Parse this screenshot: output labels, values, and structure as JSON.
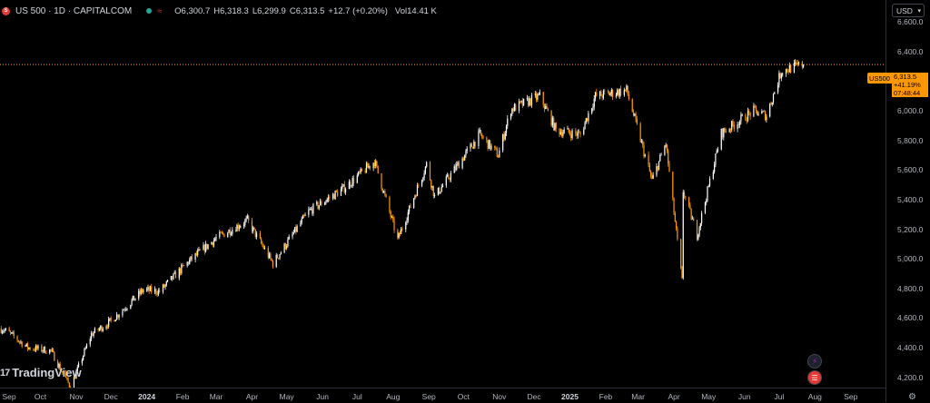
{
  "legend": {
    "symbol": "US 500 · 1D · CAPITALCOM",
    "open_label": "O",
    "open": "6,300.7",
    "high_label": "H",
    "high": "6,318.3",
    "low_label": "L",
    "low": "6,299.9",
    "close_label": "C",
    "close": "6,313.5",
    "change": "+12.7 (+0.20%)",
    "vol_label": "Vol",
    "vol": "14.41 K"
  },
  "currency": "USD",
  "logo_text": "TradingView",
  "last_price": {
    "symbol_tag": "US500",
    "price": "6,313.5",
    "change_pct": "+41.19%",
    "countdown": "07:48:44"
  },
  "colors": {
    "up": "#ffffff",
    "down": "#ff9800",
    "background": "#000000",
    "last_price_line": "#ff9800"
  },
  "icons": {
    "market_status": "market-open-dot",
    "flash": "lightning-icon",
    "flag": "us-flag-icon",
    "settings": "settings-icon"
  },
  "chart_data": {
    "type": "candlestick",
    "title": "US 500 · 1D · CAPITALCOM",
    "xlabel": "",
    "ylabel": "",
    "ylim": [
      4130,
      6750
    ],
    "yticks": [
      4200,
      4400,
      4600,
      4800,
      5000,
      5200,
      5400,
      5600,
      5800,
      6000,
      6200,
      6400,
      6600
    ],
    "ytick_labels": [
      "4,200.0",
      "4,400.0",
      "4,600.0",
      "4,800.0",
      "5,000.0",
      "5,200.0",
      "5,400.0",
      "5,600.0",
      "5,800.0",
      "6,000.0",
      "6,200.0",
      "6,400.0",
      "6,600.0"
    ],
    "xtick_labels": [
      "Sep",
      "Oct",
      "Nov",
      "Dec",
      "2024",
      "Feb",
      "Mar",
      "Apr",
      "May",
      "Jun",
      "Jul",
      "Aug",
      "Sep",
      "Oct",
      "Nov",
      "Dec",
      "2025",
      "Feb",
      "Mar",
      "Apr",
      "May",
      "Jun",
      "Jul",
      "Aug",
      "Sep"
    ],
    "xtick_dates": [
      "2023-09-01",
      "2023-10-01",
      "2023-11-01",
      "2023-12-01",
      "2024-01-01",
      "2024-02-01",
      "2024-03-01",
      "2024-04-01",
      "2024-05-01",
      "2024-06-01",
      "2024-07-01",
      "2024-08-01",
      "2024-09-01",
      "2024-10-01",
      "2024-11-01",
      "2024-12-01",
      "2025-01-01",
      "2025-02-01",
      "2025-03-01",
      "2025-04-01",
      "2025-05-01",
      "2025-06-01",
      "2025-07-01",
      "2025-08-01",
      "2025-09-01"
    ],
    "bold_ticks": [
      "2024",
      "2025"
    ],
    "xlim": [
      "2023-08-27",
      "2025-10-01"
    ],
    "anchors": [
      {
        "date": "2023-08-27",
        "value": 4530
      },
      {
        "date": "2023-09-02",
        "value": 4510
      },
      {
        "date": "2023-09-20",
        "value": 4400
      },
      {
        "date": "2023-10-10",
        "value": 4380
      },
      {
        "date": "2023-10-27",
        "value": 4130
      },
      {
        "date": "2023-11-14",
        "value": 4490
      },
      {
        "date": "2023-12-01",
        "value": 4580
      },
      {
        "date": "2023-12-29",
        "value": 4790
      },
      {
        "date": "2024-01-12",
        "value": 4780
      },
      {
        "date": "2024-02-06",
        "value": 4980
      },
      {
        "date": "2024-03-01",
        "value": 5140
      },
      {
        "date": "2024-03-28",
        "value": 5260
      },
      {
        "date": "2024-04-19",
        "value": 4970
      },
      {
        "date": "2024-05-20",
        "value": 5320
      },
      {
        "date": "2024-06-20",
        "value": 5480
      },
      {
        "date": "2024-07-16",
        "value": 5660
      },
      {
        "date": "2024-08-05",
        "value": 5130
      },
      {
        "date": "2024-08-30",
        "value": 5640
      },
      {
        "date": "2024-09-06",
        "value": 5420
      },
      {
        "date": "2024-10-15",
        "value": 5840
      },
      {
        "date": "2024-10-31",
        "value": 5700
      },
      {
        "date": "2024-11-11",
        "value": 6010
      },
      {
        "date": "2024-12-06",
        "value": 6100
      },
      {
        "date": "2024-12-20",
        "value": 5870
      },
      {
        "date": "2025-01-10",
        "value": 5840
      },
      {
        "date": "2025-01-23",
        "value": 6100
      },
      {
        "date": "2025-02-19",
        "value": 6140
      },
      {
        "date": "2025-03-13",
        "value": 5530
      },
      {
        "date": "2025-03-25",
        "value": 5780
      },
      {
        "date": "2025-04-08",
        "value": 4850
      },
      {
        "date": "2025-04-09",
        "value": 5460
      },
      {
        "date": "2025-04-21",
        "value": 5160
      },
      {
        "date": "2025-05-12",
        "value": 5850
      },
      {
        "date": "2025-06-09",
        "value": 6000
      },
      {
        "date": "2025-06-20",
        "value": 5970
      },
      {
        "date": "2025-07-03",
        "value": 6270
      },
      {
        "date": "2025-07-22",
        "value": 6313.5
      }
    ],
    "last_price": 6313.5
  }
}
